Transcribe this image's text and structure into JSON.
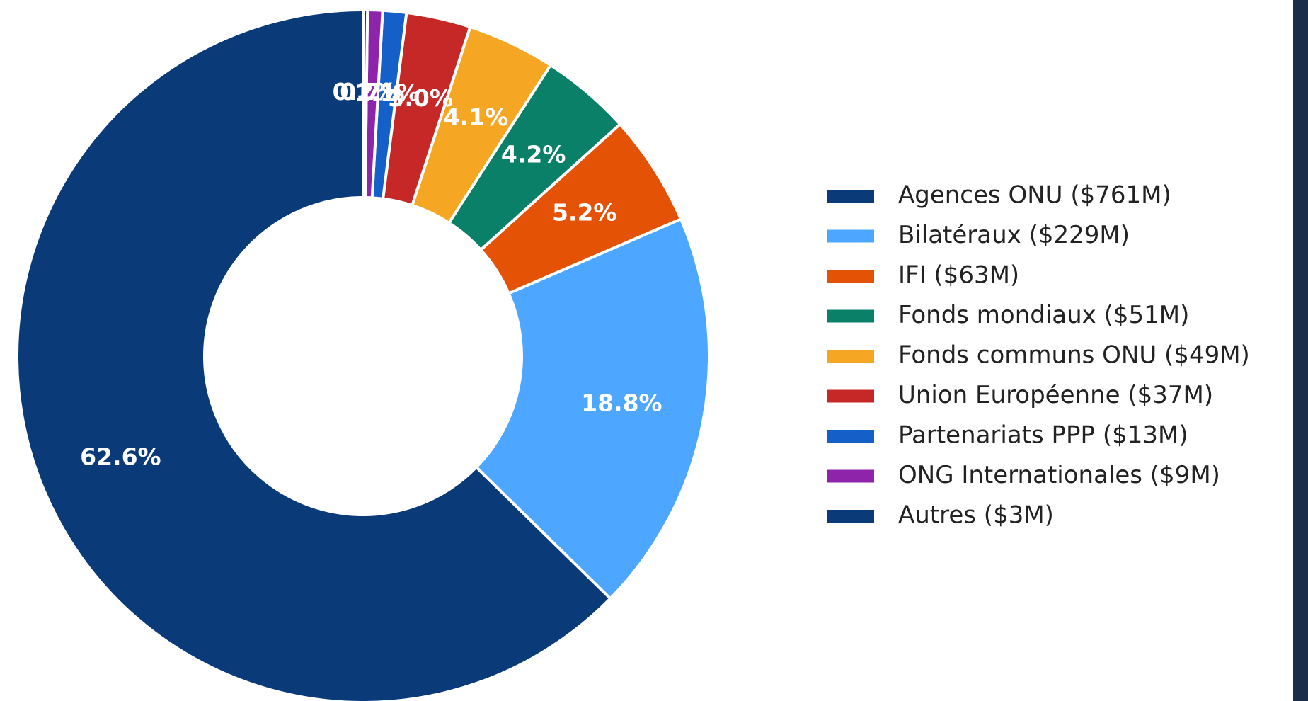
{
  "chart_data": {
    "type": "pie",
    "donut": true,
    "categories": [
      "Agences ONU ($761M)",
      "Bilatéraux ($229M)",
      "IFI ($63M)",
      "Fonds mondiaux ($51M)",
      "Fonds communs ONU ($49M)",
      "Union Européenne ($37M)",
      "Partenariats PPP ($13M)",
      "ONG Internationales ($9M)",
      "Autres ($3M)"
    ],
    "values": [
      62.6,
      18.8,
      5.2,
      4.2,
      4.1,
      3.0,
      1.1,
      0.7,
      0.2
    ],
    "value_labels": [
      "62.6%",
      "18.8%",
      "5.2%",
      "4.2%",
      "4.1%",
      "3.0%",
      "1.1%",
      "0.7%",
      "0.2%"
    ],
    "colors": [
      "#0a3a78",
      "#4da6ff",
      "#e35205",
      "#0b8069",
      "#f5a623",
      "#c62828",
      "#1560c8",
      "#8e24aa",
      "#0a3a78"
    ],
    "legend": "right"
  }
}
